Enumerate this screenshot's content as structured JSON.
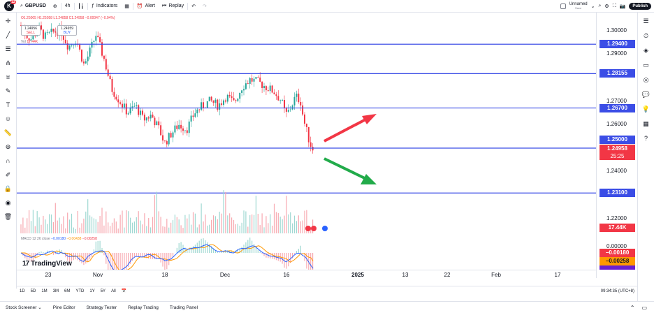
{
  "header": {
    "logo_letter": "K",
    "logo_badge": "12",
    "symbol": "GBPUSD",
    "interval": "4h",
    "indicators_label": "Indicators",
    "alert_label": "Alert",
    "replay_label": "Replay",
    "layout_name": "Unnamed",
    "layout_status": "Save",
    "publish_label": "Publish"
  },
  "legend": {
    "ohlc": "O1.25005 H1.25058 L1.24858 C1.24958 −0.00047 (−0.04%)",
    "sell_price": "1.24956",
    "sell_label": "SELL",
    "buy_price": "1.24959",
    "buy_label": "BUY",
    "spread": "0.3",
    "vol_label": "Vol",
    "vol_value": "17.44K"
  },
  "macd": {
    "label": "MACD 12 26 close",
    "v1": "−0.00180",
    "v2": "−0.00438",
    "v3": "−0.00258"
  },
  "brand": "TradingView",
  "price_scale": {
    "labels": [
      "1.30000",
      "1.29000",
      "1.27000",
      "1.26000",
      "1.24000",
      "1.22000",
      "0.00000"
    ],
    "levels": [
      "1.29400",
      "1.28155",
      "1.26700",
      "1.25000",
      "1.23100"
    ],
    "last_price": "1.24958",
    "countdown": "25:25",
    "volume": "17.44K",
    "macd_values": [
      "−0.00180",
      "−0.00258"
    ]
  },
  "time_axis": {
    "labels": [
      "23",
      "Nov",
      "18",
      "Dec",
      "16",
      "2025",
      "13",
      "22",
      "Feb",
      "17"
    ]
  },
  "ranges": [
    "1D",
    "5D",
    "1M",
    "3M",
    "6M",
    "YTD",
    "1Y",
    "5Y",
    "All"
  ],
  "clock": "09:34:35 (UTC+8)",
  "bottom_tabs": [
    "Stock Screener",
    "Pine Editor",
    "Strategy Tester",
    "Replay Trading",
    "Trading Panel"
  ],
  "colors": {
    "level_line": "#3b4de6",
    "up_candle": "#26a69a",
    "down_candle": "#f23645",
    "arrow_up": "#f23645",
    "arrow_down": "#22ab4a",
    "macd_line": "#2962ff",
    "signal_line": "#ff9800"
  },
  "chart_data": {
    "type": "candlestick",
    "symbol": "GBPUSD",
    "interval": "4h",
    "y_range": [
      1.21,
      1.305
    ],
    "horizontal_levels": [
      1.294,
      1.28155,
      1.267,
      1.25,
      1.231
    ],
    "last_price": 1.24958,
    "close_path": [
      [
        0,
        1.302
      ],
      [
        6,
        1.298
      ],
      [
        14,
        1.296
      ],
      [
        22,
        1.301
      ],
      [
        30,
        1.297
      ],
      [
        40,
        1.299
      ],
      [
        50,
        1.3
      ],
      [
        60,
        1.293
      ],
      [
        70,
        1.296
      ],
      [
        80,
        1.285
      ],
      [
        85,
        1.289
      ],
      [
        95,
        1.298
      ],
      [
        105,
        1.288
      ],
      [
        115,
        1.275
      ],
      [
        125,
        1.27
      ],
      [
        135,
        1.265
      ],
      [
        145,
        1.268
      ],
      [
        155,
        1.262
      ],
      [
        165,
        1.264
      ],
      [
        175,
        1.258
      ],
      [
        182,
        1.252
      ],
      [
        190,
        1.256
      ],
      [
        200,
        1.26
      ],
      [
        210,
        1.258
      ],
      [
        220,
        1.265
      ],
      [
        230,
        1.268
      ],
      [
        240,
        1.27
      ],
      [
        250,
        1.268
      ],
      [
        260,
        1.272
      ],
      [
        270,
        1.269
      ],
      [
        280,
        1.276
      ],
      [
        290,
        1.279
      ],
      [
        300,
        1.278
      ],
      [
        310,
        1.276
      ],
      [
        320,
        1.274
      ],
      [
        330,
        1.27
      ],
      [
        335,
        1.264
      ],
      [
        340,
        1.266
      ],
      [
        348,
        1.272
      ],
      [
        354,
        1.27
      ],
      [
        358,
        1.262
      ],
      [
        362,
        1.257
      ],
      [
        366,
        1.252
      ],
      [
        370,
        1.2496
      ]
    ],
    "volume_overlay": "17.44K",
    "macd": {
      "macd": -0.0018,
      "signal": -0.00438,
      "histogram": -0.00258
    }
  }
}
